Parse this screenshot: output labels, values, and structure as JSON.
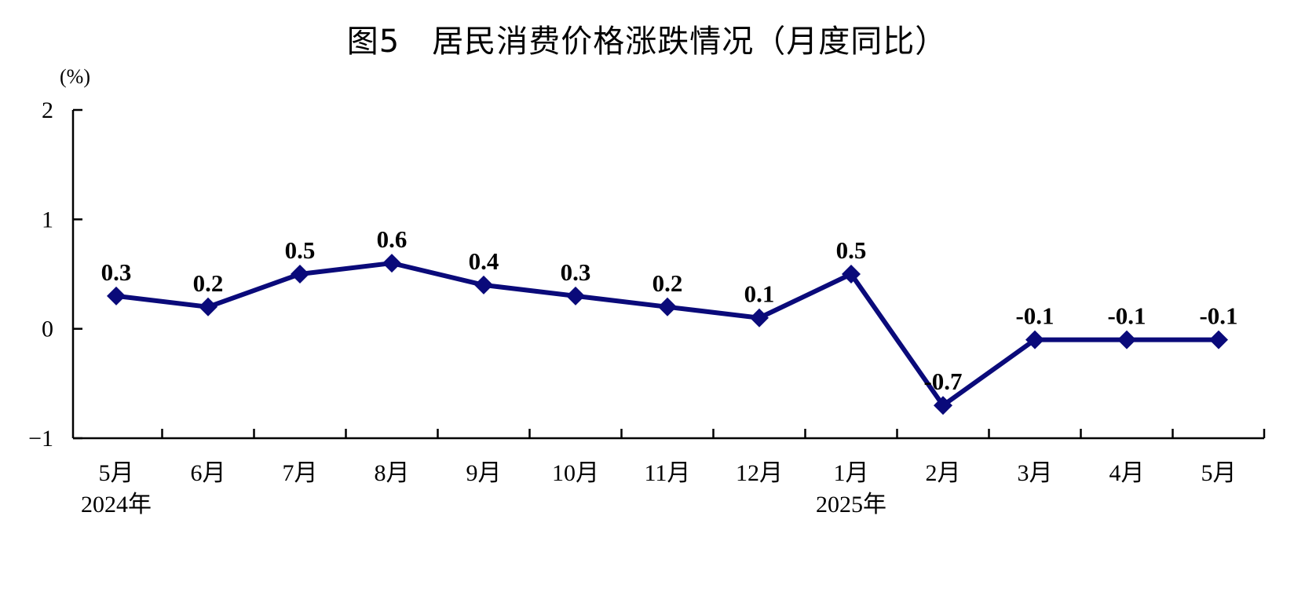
{
  "chart_data": {
    "type": "line",
    "title": "图5　居民消费价格涨跌情况（月度同比）",
    "unit": "(%)",
    "categories": [
      "5月",
      "6月",
      "7月",
      "8月",
      "9月",
      "10月",
      "11月",
      "12月",
      "1月",
      "2月",
      "3月",
      "4月",
      "5月"
    ],
    "year_labels": [
      {
        "index": 0,
        "label": "2024年"
      },
      {
        "index": 8,
        "label": "2025年"
      }
    ],
    "series": [
      {
        "values": [
          0.3,
          0.2,
          0.5,
          0.6,
          0.4,
          0.3,
          0.2,
          0.1,
          0.5,
          -0.7,
          -0.1,
          -0.1,
          -0.1
        ],
        "labels": [
          "0.3",
          "0.2",
          "0.5",
          "0.6",
          "0.4",
          "0.3",
          "0.2",
          "0.1",
          "0.5",
          "-0.7",
          "-0.1",
          "-0.1",
          "-0.1"
        ],
        "color": "#0a0a7a"
      }
    ],
    "ylim": [
      -1,
      2
    ],
    "yticks": [
      2,
      1,
      0,
      -1
    ],
    "ytick_labels": [
      "2",
      "1",
      "0",
      "−1"
    ],
    "grid": false,
    "legend": "none",
    "marker": "diamond"
  }
}
